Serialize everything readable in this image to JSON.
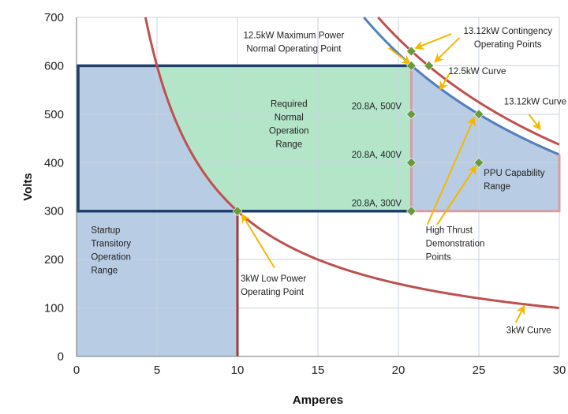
{
  "chart_data": {
    "type": "line",
    "title": "",
    "xlabel": "Amperes",
    "ylabel": "Volts",
    "xlim": [
      0,
      30
    ],
    "ylim": [
      0,
      700
    ],
    "x_ticks": [
      0,
      5,
      10,
      15,
      20,
      25,
      30
    ],
    "y_ticks": [
      0,
      100,
      200,
      300,
      400,
      500,
      600,
      700
    ],
    "grid": true,
    "series": [
      {
        "name": "3kW Curve",
        "kind": "curve",
        "power_w": 3000,
        "x": [
          4.3,
          5,
          6,
          7,
          8,
          9,
          10,
          12,
          14,
          16,
          18,
          20,
          22,
          24,
          26,
          28,
          30
        ],
        "y": [
          697.7,
          600,
          500,
          428.6,
          375,
          333.3,
          300,
          250,
          214.3,
          187.5,
          166.7,
          150,
          136.4,
          125,
          115.4,
          107.1,
          100
        ],
        "color": "#c0504d"
      },
      {
        "name": "12.5kW Curve",
        "kind": "curve",
        "power_w": 12500,
        "x": [
          17.86,
          19,
          20,
          20.83,
          22,
          23,
          24,
          25
        ],
        "y": [
          700,
          657.9,
          625,
          600,
          568.2,
          543.5,
          520.8,
          500
        ],
        "color": "#4f81bd"
      },
      {
        "name": "13.12kW Curve",
        "kind": "curve",
        "power_w": 13120,
        "x": [
          18.74,
          20,
          21,
          22,
          23,
          24,
          25,
          26,
          27,
          28,
          29,
          30
        ],
        "y": [
          700,
          656,
          624.8,
          596.4,
          570.4,
          546.7,
          524.8,
          504.6,
          485.9,
          468.6,
          452.4,
          437.3
        ],
        "color": "#c0504d"
      }
    ],
    "regions": [
      {
        "name": "Startup Transitory Operation Range",
        "label": "Startup\nTransitory\nOperation\nRange",
        "polygon": [
          [
            0,
            0
          ],
          [
            10,
            0
          ],
          [
            10,
            300
          ],
          [
            0,
            300
          ]
        ],
        "fill": "#b8cce4"
      },
      {
        "name": "Startup Upper Range",
        "label": "",
        "polygon": [
          [
            0,
            300
          ],
          [
            0,
            600
          ],
          [
            5,
            600
          ],
          [
            5.5,
            545.5
          ],
          [
            6,
            500
          ],
          [
            7,
            428.6
          ],
          [
            8,
            375
          ],
          [
            9,
            333.3
          ],
          [
            10,
            300
          ]
        ],
        "fill": "#b8cce4"
      },
      {
        "name": "Required Normal Operation Range",
        "label": "Required\nNormal\nOperation\nRange",
        "polygon": [
          [
            5,
            600
          ],
          [
            20.8,
            600
          ],
          [
            20.8,
            300
          ],
          [
            10,
            300
          ],
          [
            9,
            333.3
          ],
          [
            8,
            375
          ],
          [
            7,
            428.6
          ],
          [
            6,
            500
          ],
          [
            5.5,
            545.5
          ]
        ],
        "fill": "#b3e6c9"
      },
      {
        "name": "PPU Capability Range",
        "label": "PPU Capability\nRange",
        "polygon": [
          [
            20.8,
            300
          ],
          [
            30,
            300
          ],
          [
            30,
            416.7
          ],
          [
            28,
            446.4
          ],
          [
            26,
            480.8
          ],
          [
            24,
            520.8
          ],
          [
            22,
            568.2
          ],
          [
            20.83,
            600
          ],
          [
            20.8,
            600
          ]
        ],
        "fill": "#b8cce4"
      }
    ],
    "points": [
      {
        "name": "3kW Low Power Operating Point",
        "x": 10,
        "y": 300
      },
      {
        "name": "20.8A, 300V",
        "x": 20.8,
        "y": 300
      },
      {
        "name": "20.8A, 400V",
        "x": 20.8,
        "y": 400
      },
      {
        "name": "20.8A, 500V",
        "x": 20.8,
        "y": 500
      },
      {
        "name": "12.5kW Maximum Power Normal Operating Point",
        "x": 20.8,
        "y": 600
      },
      {
        "name": "13.12kW Contingency Operating Point 1",
        "x": 20.8,
        "y": 630
      },
      {
        "name": "13.12kW Contingency Operating Point 2",
        "x": 21.9,
        "y": 600
      },
      {
        "name": "High Thrust Demonstration Point 1",
        "x": 25,
        "y": 500
      },
      {
        "name": "High Thrust Demonstration Point 2",
        "x": 25,
        "y": 400
      }
    ],
    "annotations": [
      {
        "name": "annot-12-5kw-max-power",
        "text": "12.5kW Maximum Power\nNormal Operating Point",
        "x": 13.5,
        "y": 657,
        "anchor": "middle"
      },
      {
        "name": "annot-13-12kw-contingency",
        "text": "13.12kW Contingency\nOperating Points",
        "x": 26.8,
        "y": 666,
        "anchor": "middle"
      },
      {
        "name": "annot-12-5kw-curve",
        "text": "12.5kW Curve",
        "x": 24.9,
        "y": 583,
        "anchor": "middle"
      },
      {
        "name": "annot-13-12kw-curve",
        "text": "13.12kW Curve",
        "x": 28.5,
        "y": 520,
        "anchor": "middle"
      },
      {
        "name": "annot-required-normal",
        "text": "Required\nNormal\nOperation\nRange",
        "x": 13.2,
        "y": 515,
        "anchor": "middle"
      },
      {
        "name": "annot-20-8a-500v",
        "text": "20.8A, 500V",
        "x": 20.2,
        "y": 510,
        "anchor": "end"
      },
      {
        "name": "annot-20-8a-400v",
        "text": "20.8A, 400V",
        "x": 20.2,
        "y": 410,
        "anchor": "end"
      },
      {
        "name": "annot-20-8a-300v",
        "text": "20.8A, 300V",
        "x": 20.2,
        "y": 310,
        "anchor": "end"
      },
      {
        "name": "annot-ppu-capability",
        "text": "PPU Capability\nRange",
        "x": 25.3,
        "y": 373,
        "anchor": "start"
      },
      {
        "name": "annot-high-thrust",
        "text": "High Thrust\nDemonstration\nPoints",
        "x": 21.7,
        "y": 255,
        "anchor": "start"
      },
      {
        "name": "annot-startup",
        "text": "Startup\nTransitory\nOperation\nRange",
        "x": 0.9,
        "y": 255,
        "anchor": "start"
      },
      {
        "name": "annot-3kw-low-power",
        "text": "3kW Low Power\nOperating Point",
        "x": 10.2,
        "y": 155,
        "anchor": "start"
      },
      {
        "name": "annot-3kw-curve",
        "text": "3kW Curve",
        "x": 28.1,
        "y": 48,
        "anchor": "middle"
      }
    ],
    "arrows": [
      {
        "name": "arrow-12-5kw-max-power",
        "from": [
          19.4,
          637
        ],
        "to": [
          20.7,
          605
        ]
      },
      {
        "name": "arrow-contingency-1",
        "from": [
          23.3,
          666
        ],
        "to": [
          21.1,
          637
        ]
      },
      {
        "name": "arrow-contingency-2",
        "from": [
          23.8,
          658
        ],
        "to": [
          22.3,
          609
        ]
      },
      {
        "name": "arrow-12-5kw-curve",
        "from": [
          23.2,
          585
        ],
        "to": [
          22.6,
          552
        ]
      },
      {
        "name": "arrow-13-12kw-curve",
        "from": [
          28.1,
          500
        ],
        "to": [
          28.8,
          470
        ]
      },
      {
        "name": "arrow-high-thrust-1",
        "from": [
          21.8,
          272
        ],
        "to": [
          24.7,
          492
        ]
      },
      {
        "name": "arrow-high-thrust-2",
        "from": [
          22.4,
          272
        ],
        "to": [
          24.8,
          392
        ]
      },
      {
        "name": "arrow-3kw-low-power",
        "from": [
          12.3,
          183
        ],
        "to": [
          10.3,
          292
        ]
      },
      {
        "name": "arrow-3kw-curve",
        "from": [
          27.3,
          70
        ],
        "to": [
          27.8,
          103
        ]
      }
    ],
    "frames": [
      {
        "name": "normal-operation-frame",
        "kind": "rect",
        "x": [
          0.1,
          20.8
        ],
        "y": [
          300,
          600
        ],
        "color": "#1f3f6b"
      },
      {
        "name": "ppu-range-frame",
        "kind": "polyline",
        "color": "#d99ca1"
      },
      {
        "name": "startup-vertical-line",
        "kind": "line",
        "x": [
          10,
          10
        ],
        "y": [
          0,
          300
        ],
        "color": "#a03a3a"
      }
    ],
    "colors": {
      "curve_3kw": "#c0504d",
      "curve_12_5kw": "#4f81bd",
      "curve_13_12kw": "#c0504d",
      "point_marker": "#6b9a3c",
      "arrow": "#f5b800",
      "frame_dark": "#1f3f6b",
      "frame_pink": "#d99ca1",
      "region_blue": "#b8cce4",
      "region_green": "#b3e6c9",
      "grid": "#c8d3e0",
      "axis": "#777777"
    }
  }
}
